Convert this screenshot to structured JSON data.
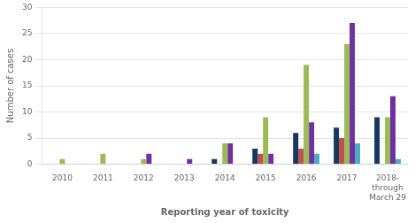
{
  "chart_data": {
    "type": "bar",
    "xlabel": "Reporting year of toxicity",
    "ylabel": "Number of cases",
    "categories": [
      "2010",
      "2011",
      "2012",
      "2013",
      "2014",
      "2015",
      "2016",
      "2017",
      "2018-\nthrough\nMarch 29"
    ],
    "series": [
      {
        "color": "#17375E",
        "values": [
          0,
          0,
          0,
          0,
          1,
          3,
          6,
          7,
          9
        ]
      },
      {
        "color": "#C0504D",
        "values": [
          0,
          0,
          0,
          0,
          0,
          2,
          3,
          5,
          0
        ]
      },
      {
        "color": "#9BBB59",
        "values": [
          1,
          2,
          1,
          0,
          4,
          9,
          19,
          23,
          9
        ]
      },
      {
        "color": "#7030A0",
        "values": [
          0,
          0,
          2,
          1,
          4,
          2,
          8,
          27,
          13
        ]
      },
      {
        "color": "#4BACC6",
        "values": [
          0,
          0,
          0,
          0,
          0,
          0,
          2,
          4,
          1
        ]
      }
    ],
    "ylim": [
      0,
      30
    ],
    "yticks": [
      0,
      5,
      10,
      15,
      20,
      25,
      30
    ],
    "grid": true
  }
}
